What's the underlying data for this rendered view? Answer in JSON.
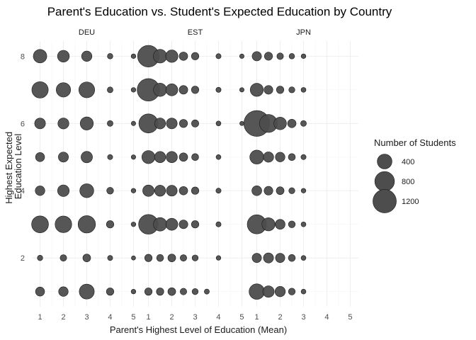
{
  "chart_data": {
    "type": "scatter",
    "title": "Parent's Education vs. Student's Expected Education by Country",
    "xlabel": "Parent's Highest Level of Education (Mean)",
    "ylabel_lines": [
      "Highest Expected",
      "Education Level"
    ],
    "xlim": [
      0.65,
      5.35
    ],
    "ylim": [
      0.55,
      8.45
    ],
    "x_ticks": [
      "1",
      "2",
      "3",
      "4",
      "5"
    ],
    "y_ticks": [
      "2",
      "4",
      "6",
      "8"
    ],
    "grid": true,
    "point_color": "#4d4d4d",
    "point_stroke": "#1a1a1a",
    "facets": [
      {
        "name": "DEU",
        "points": [
          {
            "x": 1,
            "y": 8,
            "n": 320
          },
          {
            "x": 2,
            "y": 8,
            "n": 230
          },
          {
            "x": 3,
            "y": 8,
            "n": 160
          },
          {
            "x": 4,
            "y": 8,
            "n": 20
          },
          {
            "x": 5,
            "y": 8,
            "n": 10
          },
          {
            "x": 1,
            "y": 7,
            "n": 520
          },
          {
            "x": 2,
            "y": 7,
            "n": 380
          },
          {
            "x": 3,
            "y": 7,
            "n": 480
          },
          {
            "x": 4,
            "y": 7,
            "n": 25
          },
          {
            "x": 5,
            "y": 7,
            "n": 10
          },
          {
            "x": 1,
            "y": 6,
            "n": 180
          },
          {
            "x": 2,
            "y": 6,
            "n": 190
          },
          {
            "x": 3,
            "y": 6,
            "n": 300
          },
          {
            "x": 4,
            "y": 6,
            "n": 25
          },
          {
            "x": 5,
            "y": 6,
            "n": 8
          },
          {
            "x": 1,
            "y": 5,
            "n": 110
          },
          {
            "x": 2,
            "y": 5,
            "n": 150
          },
          {
            "x": 3,
            "y": 5,
            "n": 210
          },
          {
            "x": 4,
            "y": 5,
            "n": 15
          },
          {
            "x": 5,
            "y": 5,
            "n": 8
          },
          {
            "x": 1,
            "y": 4,
            "n": 130
          },
          {
            "x": 2,
            "y": 4,
            "n": 220
          },
          {
            "x": 3,
            "y": 4,
            "n": 350
          },
          {
            "x": 4,
            "y": 4,
            "n": 45
          },
          {
            "x": 5,
            "y": 4,
            "n": 10
          },
          {
            "x": 1,
            "y": 3,
            "n": 560
          },
          {
            "x": 2,
            "y": 3,
            "n": 540
          },
          {
            "x": 3,
            "y": 3,
            "n": 600
          },
          {
            "x": 4,
            "y": 3,
            "n": 60
          },
          {
            "x": 5,
            "y": 3,
            "n": 10
          },
          {
            "x": 1,
            "y": 2,
            "n": 20
          },
          {
            "x": 2,
            "y": 2,
            "n": 40
          },
          {
            "x": 3,
            "y": 2,
            "n": 70
          },
          {
            "x": 4,
            "y": 2,
            "n": 15
          },
          {
            "x": 5,
            "y": 2,
            "n": 6
          },
          {
            "x": 1,
            "y": 1,
            "n": 110
          },
          {
            "x": 2,
            "y": 1,
            "n": 130
          },
          {
            "x": 3,
            "y": 1,
            "n": 420
          },
          {
            "x": 4,
            "y": 1,
            "n": 60
          },
          {
            "x": 5,
            "y": 1,
            "n": 10
          }
        ]
      },
      {
        "name": "EST",
        "points": [
          {
            "x": 1,
            "y": 8,
            "n": 1000
          },
          {
            "x": 1.5,
            "y": 8,
            "n": 330
          },
          {
            "x": 2,
            "y": 8,
            "n": 260
          },
          {
            "x": 2.5,
            "y": 8,
            "n": 90
          },
          {
            "x": 3,
            "y": 8,
            "n": 60
          },
          {
            "x": 4,
            "y": 8,
            "n": 15
          },
          {
            "x": 5,
            "y": 8,
            "n": 8
          },
          {
            "x": 1,
            "y": 7,
            "n": 1100
          },
          {
            "x": 1.5,
            "y": 7,
            "n": 310
          },
          {
            "x": 2,
            "y": 7,
            "n": 240
          },
          {
            "x": 2.5,
            "y": 7,
            "n": 95
          },
          {
            "x": 3,
            "y": 7,
            "n": 60
          },
          {
            "x": 4,
            "y": 7,
            "n": 15
          },
          {
            "x": 5,
            "y": 7,
            "n": 8
          },
          {
            "x": 1,
            "y": 6,
            "n": 750
          },
          {
            "x": 1.5,
            "y": 6,
            "n": 190
          },
          {
            "x": 2,
            "y": 6,
            "n": 180
          },
          {
            "x": 2.5,
            "y": 6,
            "n": 80
          },
          {
            "x": 3,
            "y": 6,
            "n": 55
          },
          {
            "x": 4,
            "y": 6,
            "n": 12
          },
          {
            "x": 5,
            "y": 6,
            "n": 6
          },
          {
            "x": 1,
            "y": 5,
            "n": 300
          },
          {
            "x": 1.5,
            "y": 5,
            "n": 200
          },
          {
            "x": 2,
            "y": 5,
            "n": 200
          },
          {
            "x": 2.5,
            "y": 5,
            "n": 90
          },
          {
            "x": 3,
            "y": 5,
            "n": 50
          },
          {
            "x": 4,
            "y": 5,
            "n": 12
          },
          {
            "x": 1,
            "y": 4,
            "n": 210
          },
          {
            "x": 1.5,
            "y": 4,
            "n": 190
          },
          {
            "x": 2,
            "y": 4,
            "n": 180
          },
          {
            "x": 2.5,
            "y": 4,
            "n": 90
          },
          {
            "x": 3,
            "y": 4,
            "n": 60
          },
          {
            "x": 4,
            "y": 4,
            "n": 15
          },
          {
            "x": 1,
            "y": 3,
            "n": 800
          },
          {
            "x": 1.5,
            "y": 3,
            "n": 320
          },
          {
            "x": 2,
            "y": 3,
            "n": 240
          },
          {
            "x": 2.5,
            "y": 3,
            "n": 100
          },
          {
            "x": 3,
            "y": 3,
            "n": 60
          },
          {
            "x": 4,
            "y": 3,
            "n": 15
          },
          {
            "x": 1,
            "y": 2,
            "n": 60
          },
          {
            "x": 1.5,
            "y": 2,
            "n": 50
          },
          {
            "x": 2,
            "y": 2,
            "n": 70
          },
          {
            "x": 2.5,
            "y": 2,
            "n": 40
          },
          {
            "x": 3,
            "y": 2,
            "n": 30
          },
          {
            "x": 4,
            "y": 2,
            "n": 10
          },
          {
            "x": 1,
            "y": 1,
            "n": 60
          },
          {
            "x": 1.5,
            "y": 1,
            "n": 60
          },
          {
            "x": 2,
            "y": 1,
            "n": 70
          },
          {
            "x": 2.5,
            "y": 1,
            "n": 40
          },
          {
            "x": 3,
            "y": 1,
            "n": 30
          },
          {
            "x": 3.5,
            "y": 1,
            "n": 15
          }
        ]
      },
      {
        "name": "JPN",
        "points": [
          {
            "x": 1,
            "y": 8,
            "n": 120
          },
          {
            "x": 1.5,
            "y": 8,
            "n": 80
          },
          {
            "x": 2,
            "y": 8,
            "n": 40
          },
          {
            "x": 2.5,
            "y": 8,
            "n": 20
          },
          {
            "x": 3,
            "y": 8,
            "n": 10
          },
          {
            "x": 1,
            "y": 7,
            "n": 300
          },
          {
            "x": 1.5,
            "y": 7,
            "n": 100
          },
          {
            "x": 2,
            "y": 7,
            "n": 60
          },
          {
            "x": 2.5,
            "y": 7,
            "n": 30
          },
          {
            "x": 3,
            "y": 7,
            "n": 12
          },
          {
            "x": 1,
            "y": 6,
            "n": 1500
          },
          {
            "x": 1.5,
            "y": 6,
            "n": 650
          },
          {
            "x": 2,
            "y": 6,
            "n": 270
          },
          {
            "x": 2.5,
            "y": 6,
            "n": 90
          },
          {
            "x": 3,
            "y": 6,
            "n": 25
          },
          {
            "x": 1,
            "y": 5,
            "n": 350
          },
          {
            "x": 1.5,
            "y": 5,
            "n": 160
          },
          {
            "x": 2,
            "y": 5,
            "n": 130
          },
          {
            "x": 2.5,
            "y": 5,
            "n": 50
          },
          {
            "x": 3,
            "y": 5,
            "n": 15
          },
          {
            "x": 1,
            "y": 4,
            "n": 140
          },
          {
            "x": 1.5,
            "y": 4,
            "n": 100
          },
          {
            "x": 2,
            "y": 4,
            "n": 70
          },
          {
            "x": 2.5,
            "y": 4,
            "n": 30
          },
          {
            "x": 3,
            "y": 4,
            "n": 10
          },
          {
            "x": 1,
            "y": 3,
            "n": 750
          },
          {
            "x": 1.5,
            "y": 3,
            "n": 300
          },
          {
            "x": 2,
            "y": 3,
            "n": 140
          },
          {
            "x": 2.5,
            "y": 3,
            "n": 45
          },
          {
            "x": 3,
            "y": 3,
            "n": 12
          },
          {
            "x": 1,
            "y": 2,
            "n": 120
          },
          {
            "x": 1.5,
            "y": 2,
            "n": 150
          },
          {
            "x": 2,
            "y": 2,
            "n": 120
          },
          {
            "x": 2.5,
            "y": 2,
            "n": 50
          },
          {
            "x": 3,
            "y": 2,
            "n": 12
          },
          {
            "x": 1,
            "y": 1,
            "n": 450
          },
          {
            "x": 1.5,
            "y": 1,
            "n": 210
          },
          {
            "x": 2,
            "y": 1,
            "n": 160
          },
          {
            "x": 2.5,
            "y": 1,
            "n": 45
          },
          {
            "x": 3,
            "y": 1,
            "n": 12
          }
        ]
      }
    ],
    "size_legend": {
      "title": "Number of Students",
      "entries": [
        {
          "label": "400",
          "n": 400
        },
        {
          "label": "800",
          "n": 800
        },
        {
          "label": "1200",
          "n": 1200
        }
      ]
    }
  }
}
